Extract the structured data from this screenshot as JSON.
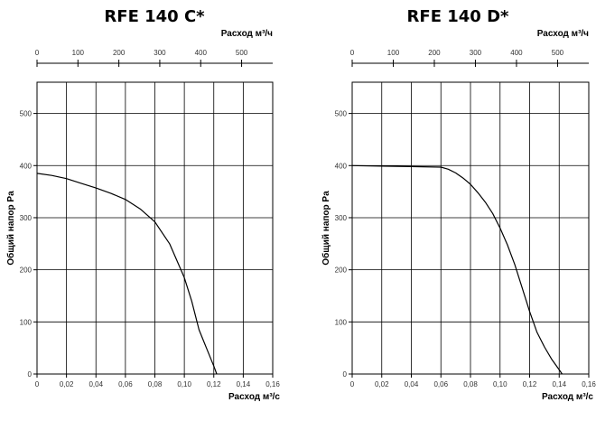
{
  "chart_data": [
    {
      "type": "line",
      "title": "RFE 140 C*",
      "xlabel": "Расход м³/с",
      "ylabel": "Общий напор Pa",
      "x2label": "Расход м³/ч",
      "xlim": [
        0,
        0.16
      ],
      "ylim": [
        0,
        560
      ],
      "x2lim": [
        0,
        576
      ],
      "x_ticks": [
        "0",
        "0,02",
        "0,04",
        "0,06",
        "0,08",
        "0,10",
        "0,12",
        "0,14",
        "0,16"
      ],
      "y_ticks": [
        "0",
        "100",
        "200",
        "300",
        "400",
        "500"
      ],
      "x2_ticks": [
        "0",
        "100",
        "200",
        "300",
        "400",
        "500"
      ],
      "grid": true,
      "series": [
        {
          "x": [
            0,
            0.01,
            0.02,
            0.03,
            0.04,
            0.05,
            0.06,
            0.07,
            0.08,
            0.09,
            0.1,
            0.105,
            0.11,
            0.115,
            0.12,
            0.122
          ],
          "y": [
            385,
            381,
            375,
            366,
            357,
            347,
            335,
            317,
            292,
            250,
            185,
            140,
            85,
            50,
            15,
            0
          ]
        }
      ]
    },
    {
      "type": "line",
      "title": "RFE 140 D*",
      "xlabel": "Расход м³/с",
      "ylabel": "Общий напор Pa",
      "x2label": "Расход м³/ч",
      "xlim": [
        0,
        0.16
      ],
      "ylim": [
        0,
        560
      ],
      "x2lim": [
        0,
        576
      ],
      "x_ticks": [
        "0",
        "0,02",
        "0,04",
        "0,06",
        "0,08",
        "0,10",
        "0,12",
        "0,14",
        "0,16"
      ],
      "y_ticks": [
        "0",
        "100",
        "200",
        "300",
        "400",
        "500"
      ],
      "x2_ticks": [
        "0",
        "100",
        "200",
        "300",
        "400",
        "500"
      ],
      "grid": true,
      "series": [
        {
          "x": [
            0,
            0.02,
            0.04,
            0.06,
            0.065,
            0.07,
            0.075,
            0.08,
            0.085,
            0.09,
            0.095,
            0.1,
            0.105,
            0.11,
            0.115,
            0.12,
            0.125,
            0.13,
            0.135,
            0.14,
            0.142
          ],
          "y": [
            400,
            399,
            398,
            397,
            393,
            386,
            376,
            364,
            348,
            330,
            308,
            280,
            248,
            210,
            165,
            120,
            80,
            52,
            28,
            8,
            0
          ]
        }
      ]
    }
  ]
}
